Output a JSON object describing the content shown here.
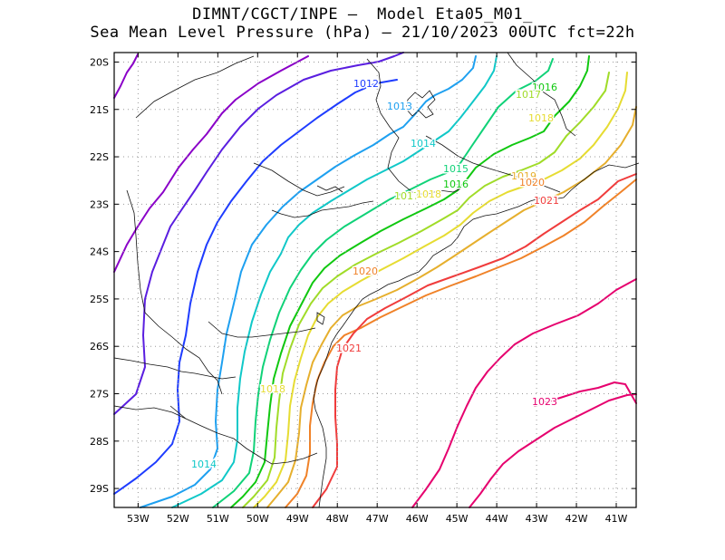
{
  "title_line1": "DIMNT/CGCT/INPE –  Model Eta05_M01_",
  "title_line2": "Sea Mean Level Pressure (hPa) – 21/10/2023 00UTC fct=22h",
  "map": {
    "lon_range": [
      -53.6,
      -40.5
    ],
    "lat_range": [
      -29.4,
      -19.8
    ],
    "lon_ticks": [
      "53W",
      "52W",
      "51W",
      "50W",
      "49W",
      "48W",
      "47W",
      "46W",
      "45W",
      "44W",
      "43W",
      "42W",
      "41W"
    ],
    "lat_ticks": [
      "20S",
      "21S",
      "22S",
      "23S",
      "24S",
      "25S",
      "26S",
      "27S",
      "28S",
      "29S"
    ],
    "grid": "dotted"
  },
  "contour_colors": {
    "1010": "#8a00c8",
    "1011": "#5a1ee0",
    "1012": "#1e3cff",
    "1013": "#1ea0f0",
    "1014": "#10c8c8",
    "1015": "#10d278",
    "1016": "#10c810",
    "1017": "#a0dc28",
    "1018": "#e6dc32",
    "1019": "#e6af2d",
    "1020": "#f08228",
    "1021": "#f03c3c",
    "1022": "#e6006e",
    "1023": "#e6006e"
  },
  "contour_labels": [
    {
      "text": "1012",
      "level": "1012"
    },
    {
      "text": "1013",
      "level": "1013"
    },
    {
      "text": "1014",
      "level": "1014"
    },
    {
      "text": "1015",
      "level": "1015"
    },
    {
      "text": "1016",
      "level": "1016"
    },
    {
      "text": "1016",
      "level": "1016"
    },
    {
      "text": "1017",
      "level": "1017"
    },
    {
      "text": "1018",
      "level": "1018"
    },
    {
      "text": "1017",
      "level": "1017"
    },
    {
      "text": "1018",
      "level": "1018"
    },
    {
      "text": "1019",
      "level": "1019"
    },
    {
      "text": "1020",
      "level": "1020"
    },
    {
      "text": "1021",
      "level": "1021"
    },
    {
      "text": "1020",
      "level": "1020"
    },
    {
      "text": "1021",
      "level": "1021"
    },
    {
      "text": "1018",
      "level": "1018"
    },
    {
      "text": "1014",
      "level": "1014"
    },
    {
      "text": "1023",
      "level": "1023"
    }
  ]
}
